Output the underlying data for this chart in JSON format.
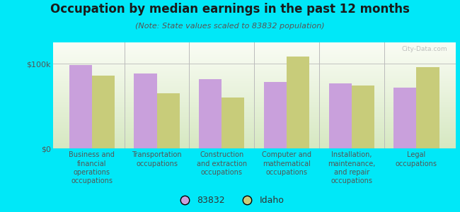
{
  "title": "Occupation by median earnings in the past 12 months",
  "subtitle": "(Note: State values scaled to 83832 population)",
  "categories": [
    "Business and\nfinancial\noperations\noccupations",
    "Transportation\noccupations",
    "Construction\nand extraction\noccupations",
    "Computer and\nmathematical\noccupations",
    "Installation,\nmaintenance,\nand repair\noccupations",
    "Legal\noccupations"
  ],
  "values_83832": [
    98000,
    88000,
    82000,
    78000,
    77000,
    72000
  ],
  "values_idaho": [
    86000,
    65000,
    60000,
    108000,
    74000,
    96000
  ],
  "color_83832": "#c9a0dc",
  "color_idaho": "#c8cc7a",
  "background_outer": "#00e8f8",
  "background_plot_top": "#f0f5e8",
  "background_plot_bottom": "#d8e8c0",
  "ylabel_ticks": [
    "$0",
    "$100k"
  ],
  "ylim": [
    0,
    125000
  ],
  "yticks": [
    0,
    100000
  ],
  "legend_labels": [
    "83832",
    "Idaho"
  ],
  "bar_width": 0.35,
  "title_fontsize": 12,
  "subtitle_fontsize": 8,
  "tick_label_fontsize": 7,
  "ytick_fontsize": 8
}
